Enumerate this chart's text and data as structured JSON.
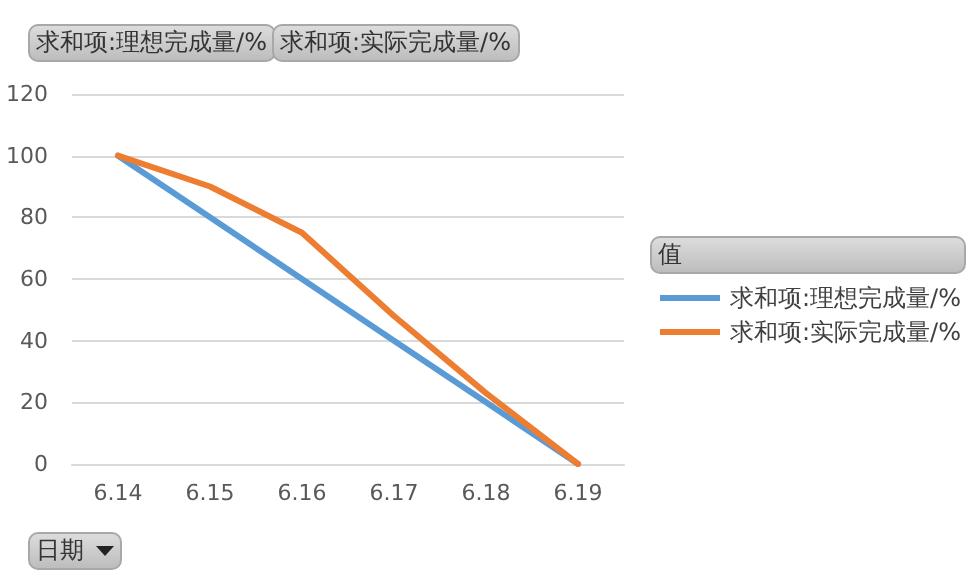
{
  "chart_data": {
    "type": "line",
    "categories": [
      "6.14",
      "6.15",
      "6.16",
      "6.17",
      "6.18",
      "6.19"
    ],
    "series": [
      {
        "name": "求和项:理想完成量/%",
        "color": "#5b9bd5",
        "values": [
          100,
          80,
          60,
          40,
          20,
          0
        ]
      },
      {
        "name": "求和项:实际完成量/%",
        "color": "#ed7d31",
        "values": [
          100,
          90,
          75,
          48,
          23,
          0
        ]
      }
    ],
    "ylim": [
      0,
      120
    ],
    "yticks": [
      0,
      20,
      40,
      60,
      80,
      100,
      120
    ],
    "xlabel": "日期",
    "legend_title": "值",
    "annotations": [
      "求和项:理想完成量/%",
      "求和项:实际完成量/%"
    ],
    "grid": "y",
    "legend": "right",
    "marker": "none",
    "line_style": "solid"
  }
}
